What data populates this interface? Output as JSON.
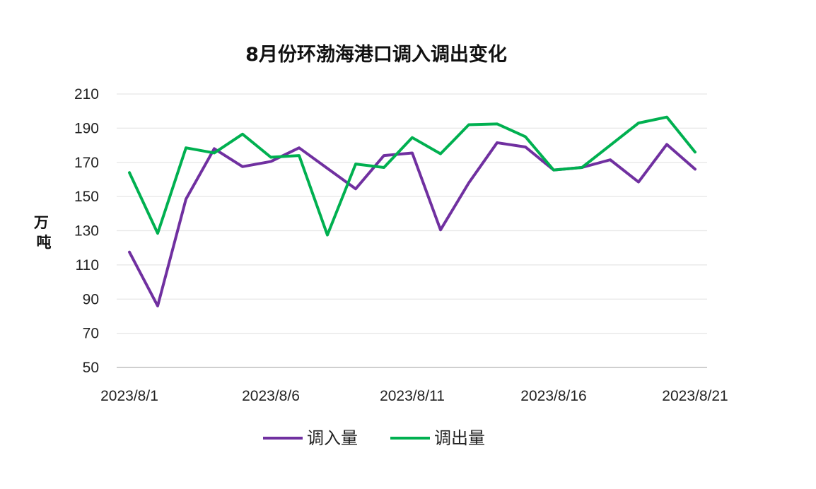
{
  "chart_data": {
    "type": "line",
    "title": "8月份环渤海港口调入调出变化",
    "ylabel": "万\n吨",
    "ylim": [
      50,
      210
    ],
    "yticks": [
      50,
      70,
      90,
      110,
      130,
      150,
      170,
      190,
      210
    ],
    "x": [
      "2023/8/1",
      "2023/8/2",
      "2023/8/3",
      "2023/8/4",
      "2023/8/5",
      "2023/8/6",
      "2023/8/7",
      "2023/8/8",
      "2023/8/9",
      "2023/8/10",
      "2023/8/11",
      "2023/8/12",
      "2023/8/13",
      "2023/8/14",
      "2023/8/15",
      "2023/8/16",
      "2023/8/17",
      "2023/8/18",
      "2023/8/19",
      "2023/8/20",
      "2023/8/21"
    ],
    "xtick_labels": [
      "2023/8/1",
      "2023/8/6",
      "2023/8/11",
      "2023/8/16",
      "2023/8/21"
    ],
    "grid": true,
    "legend_position": "bottom",
    "series": [
      {
        "name": "调入量",
        "color": "#7030a0",
        "values": [
          117.5,
          86,
          148.5,
          178,
          167.5,
          170.5,
          178.5,
          166.5,
          154.5,
          174,
          175.5,
          130.5,
          158,
          181.5,
          179,
          165.5,
          167,
          171.5,
          158.5,
          180.5,
          166
        ]
      },
      {
        "name": "调出量",
        "color": "#00b050",
        "values": [
          164,
          128.5,
          178.5,
          175.5,
          186.5,
          173,
          174,
          127.5,
          169,
          167,
          184.5,
          175,
          192,
          192.5,
          185,
          165.5,
          167,
          180,
          193,
          196.5,
          176
        ]
      }
    ]
  }
}
